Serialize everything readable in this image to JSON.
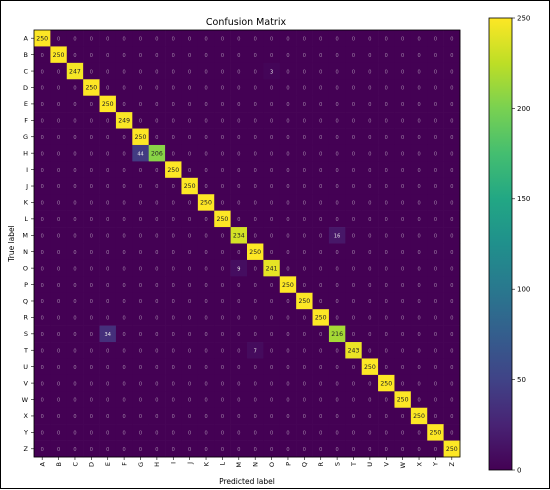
{
  "chart_data": {
    "type": "heatmap",
    "title": "Confusion Matrix",
    "xlabel": "Predicted label",
    "ylabel": "True label",
    "labels": [
      "A",
      "B",
      "C",
      "D",
      "E",
      "F",
      "G",
      "H",
      "I",
      "J",
      "K",
      "L",
      "M",
      "N",
      "O",
      "P",
      "Q",
      "R",
      "S",
      "T",
      "U",
      "V",
      "W",
      "X",
      "Y",
      "Z"
    ],
    "diagonal": [
      250,
      250,
      247,
      250,
      250,
      249,
      250,
      206,
      250,
      250,
      250,
      250,
      234,
      250,
      241,
      250,
      250,
      250,
      216,
      243,
      250,
      250,
      250,
      250,
      250,
      250
    ],
    "off_diagonal": [
      {
        "row": "C",
        "col": "O",
        "value": 3
      },
      {
        "row": "H",
        "col": "G",
        "value": 44
      },
      {
        "row": "M",
        "col": "S",
        "value": 16
      },
      {
        "row": "O",
        "col": "M",
        "value": 9
      },
      {
        "row": "S",
        "col": "E",
        "value": 34
      },
      {
        "row": "T",
        "col": "N",
        "value": 7
      }
    ],
    "colormap": "viridis",
    "colorbar": {
      "min": 0,
      "max": 250,
      "ticks": [
        0,
        50,
        100,
        150,
        200,
        250
      ]
    },
    "grid": false
  }
}
